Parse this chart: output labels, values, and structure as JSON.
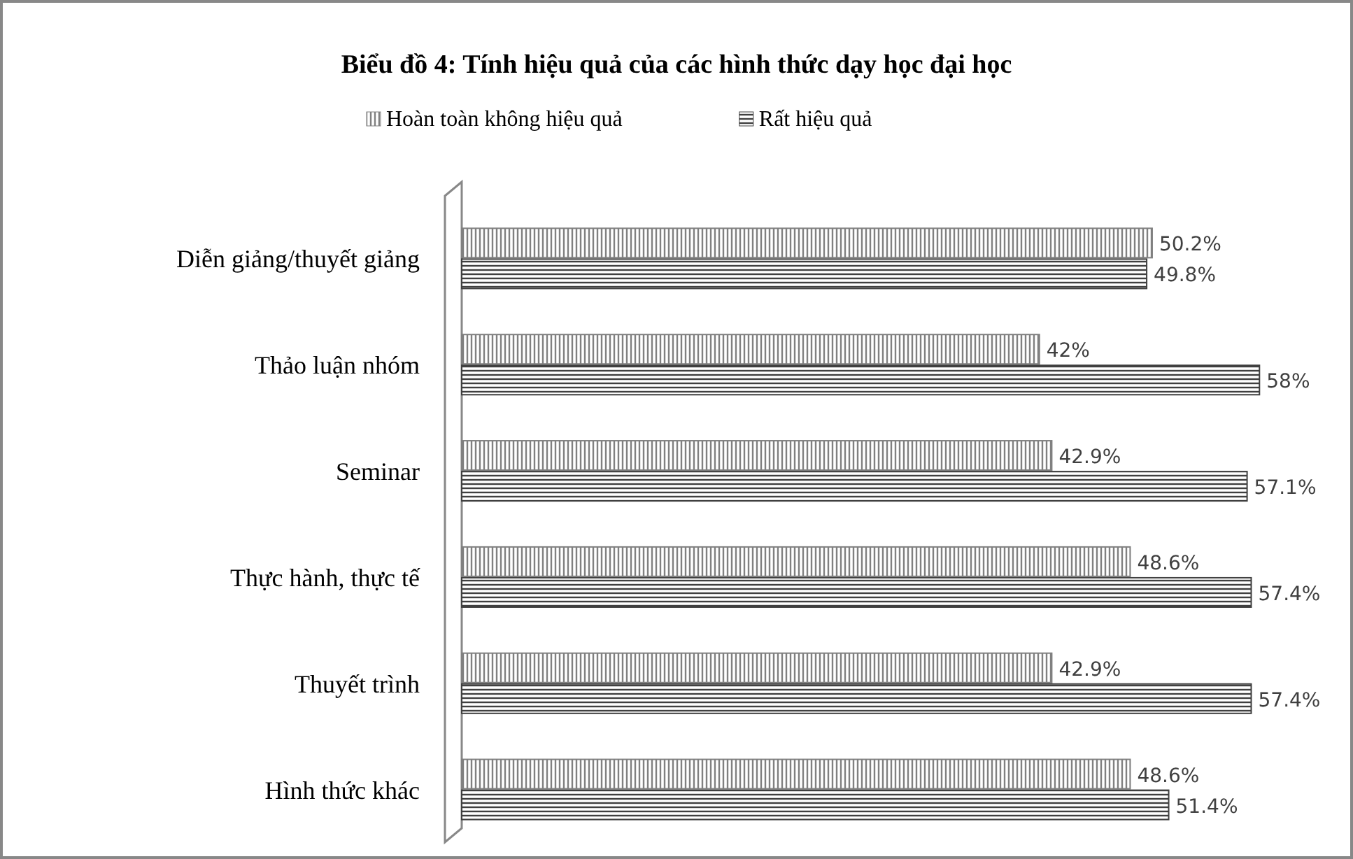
{
  "chart_data": {
    "type": "bar",
    "orientation": "horizontal",
    "title": "Biểu đồ 4: Tính hiệu quả của các hình thức dạy học đại học",
    "categories": [
      "Diễn giảng/thuyết giảng",
      "Thảo luận nhóm",
      "Seminar",
      "Thực hành, thực tế",
      "Thuyết trình",
      "Hình thức khác"
    ],
    "series": [
      {
        "name": "Hoàn toàn không hiệu quả",
        "color": "#808080",
        "values": [
          50.2,
          42,
          42.9,
          48.6,
          42.9,
          48.6
        ],
        "value_labels": [
          "50.2%",
          "42%",
          "42.9%",
          "48.6%",
          "42.9%",
          "48.6%"
        ]
      },
      {
        "name": "Rất hiệu quả",
        "color": "#404040",
        "values": [
          49.8,
          58,
          57.1,
          57.4,
          57.4,
          51.4
        ],
        "value_labels": [
          "49.8%",
          "58%",
          "57.1%",
          "57.4%",
          "57.4%",
          "51.4%"
        ]
      }
    ],
    "tick_labels": "y",
    "legend": "top"
  }
}
